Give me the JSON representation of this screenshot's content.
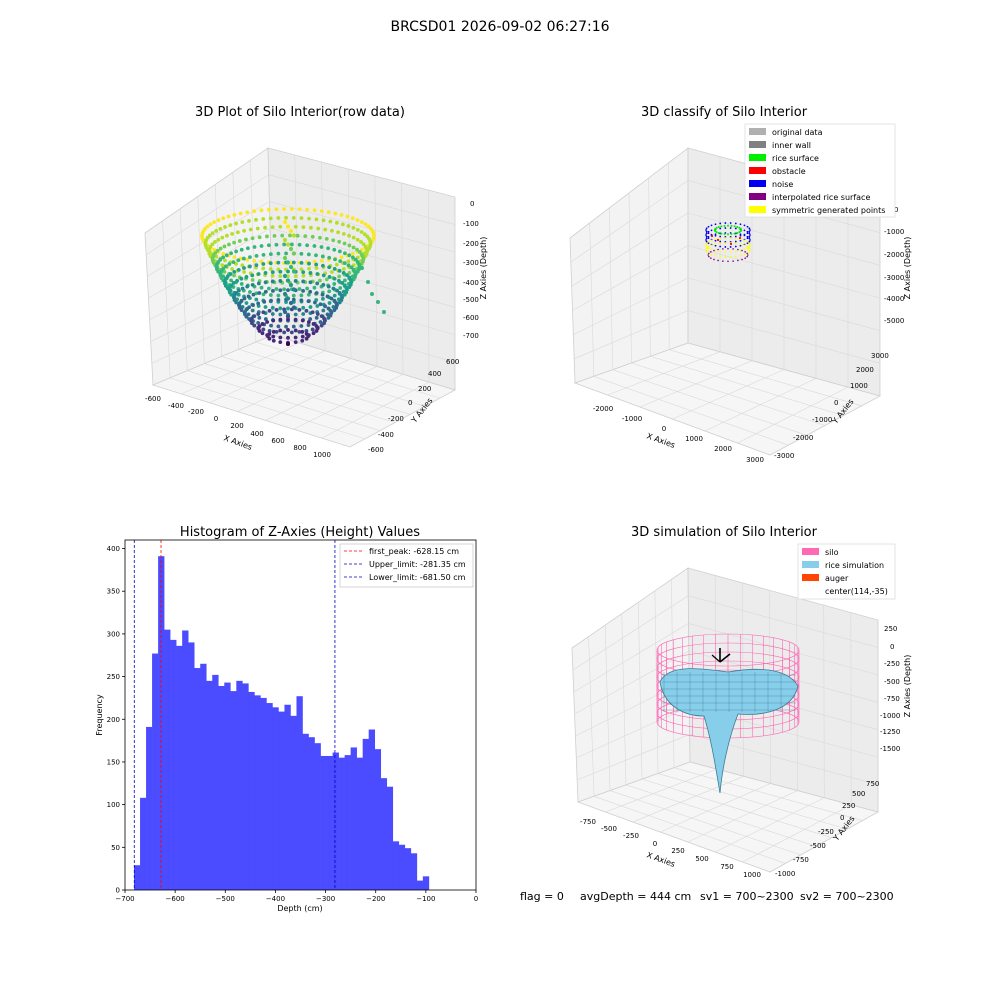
{
  "figure_title": "BRCSD01 2026-09-02 06:27:16",
  "footer": {
    "flag": "flag = 0",
    "avg_depth": "avgDepth = 444 cm",
    "sv1": "sv1 = 700~2300",
    "sv2": "sv2 = 700~2300"
  },
  "colors": {
    "hist_bar": "#4b4bff",
    "peak_line": "#ff0000",
    "limit_line": "#0000cc",
    "silo_pink": "#ff69b4",
    "rice_blue": "#87ceeb",
    "auger": "#ff4500"
  },
  "chart_data": [
    {
      "type": "scatter3d",
      "title": "3D Plot of Silo Interior(row data)",
      "xlabel": "X Axies",
      "ylabel": "Y Axies",
      "zlabel": "Z Axies (Depth)",
      "x_ticks": [
        "-600",
        "-400",
        "-200",
        "0",
        "200",
        "400",
        "600",
        "800",
        "1000"
      ],
      "y_ticks": [
        "-600",
        "-400",
        "-200",
        "0",
        "200",
        "400",
        "600"
      ],
      "z_ticks": [
        "0",
        "-100",
        "-200",
        "-300",
        "-400",
        "-500",
        "-600",
        "-700"
      ],
      "colormap": "viridis"
    },
    {
      "type": "scatter3d",
      "title": "3D classify of Silo Interior",
      "xlabel": "X Axies",
      "ylabel": "Y Axies",
      "zlabel": "Z Axies (Depth)",
      "x_ticks": [
        "-2000",
        "-1000",
        "0",
        "1000",
        "2000",
        "3000"
      ],
      "y_ticks": [
        "-3000",
        "-2000",
        "-1000",
        "0",
        "1000",
        "2000",
        "3000"
      ],
      "z_ticks": [
        "0",
        "-1000",
        "-2000",
        "-3000",
        "-4000",
        "-5000"
      ],
      "legend_position": "top-right",
      "legend": [
        {
          "label": "original data",
          "color": "#b0b0b0"
        },
        {
          "label": "inner wall",
          "color": "#808080"
        },
        {
          "label": "rice surface",
          "color": "#00ee00"
        },
        {
          "label": "obstacle",
          "color": "#ff0000"
        },
        {
          "label": "noise",
          "color": "#0000ee"
        },
        {
          "label": "interpolated rice surface",
          "color": "#800080"
        },
        {
          "label": "symmetric generated points",
          "color": "#ffff00"
        }
      ]
    },
    {
      "type": "bar",
      "title": "Histogram of Z-Axies (Height) Values",
      "xlabel": "Depth (cm)",
      "ylabel": "Frequency",
      "xlim": [
        -700,
        0
      ],
      "ylim": [
        0,
        410
      ],
      "x_ticks": [
        -700,
        -600,
        -500,
        -400,
        -300,
        -200,
        -100,
        0
      ],
      "y_ticks": [
        0,
        50,
        100,
        150,
        200,
        250,
        300,
        350,
        400
      ],
      "legend_position": "top-right",
      "bin_start": -682,
      "bin_width": 12,
      "values": [
        29,
        108,
        191,
        277,
        391,
        305,
        293,
        286,
        304,
        290,
        260,
        265,
        245,
        252,
        239,
        243,
        233,
        245,
        242,
        232,
        228,
        225,
        219,
        214,
        209,
        217,
        204,
        227,
        183,
        179,
        172,
        157,
        157,
        161,
        155,
        158,
        167,
        155,
        177,
        188,
        165,
        131,
        121,
        57,
        53,
        49,
        43,
        11,
        16
      ],
      "lines": [
        {
          "label": "first_peak: -628.15 cm",
          "x": -628.15,
          "style": "red"
        },
        {
          "label": "Upper_limit: -281.35 cm",
          "x": -281.35,
          "style": "blue"
        },
        {
          "label": "Lower_limit: -681.50 cm",
          "x": -681.5,
          "style": "blue"
        }
      ]
    },
    {
      "type": "surface3d",
      "title": "3D simulation of Silo Interior",
      "xlabel": "X Axies",
      "ylabel": "Y Axies",
      "zlabel": "Z Axies (Depth)",
      "x_ticks": [
        "-750",
        "-500",
        "-250",
        "0",
        "250",
        "500",
        "750",
        "1000"
      ],
      "y_ticks": [
        "-1000",
        "-750",
        "-500",
        "-250",
        "0",
        "250",
        "500",
        "750"
      ],
      "z_ticks": [
        "250",
        "0",
        "-250",
        "-500",
        "-750",
        "-1000",
        "-1250",
        "-1500"
      ],
      "legend_position": "top-right",
      "legend": [
        {
          "label": "silo",
          "color": "#ff69b4"
        },
        {
          "label": "rice simulation",
          "color": "#87ceeb"
        },
        {
          "label": "auger",
          "color": "#ff4500"
        },
        {
          "label": "center(114,-35)",
          "color": ""
        }
      ]
    }
  ]
}
